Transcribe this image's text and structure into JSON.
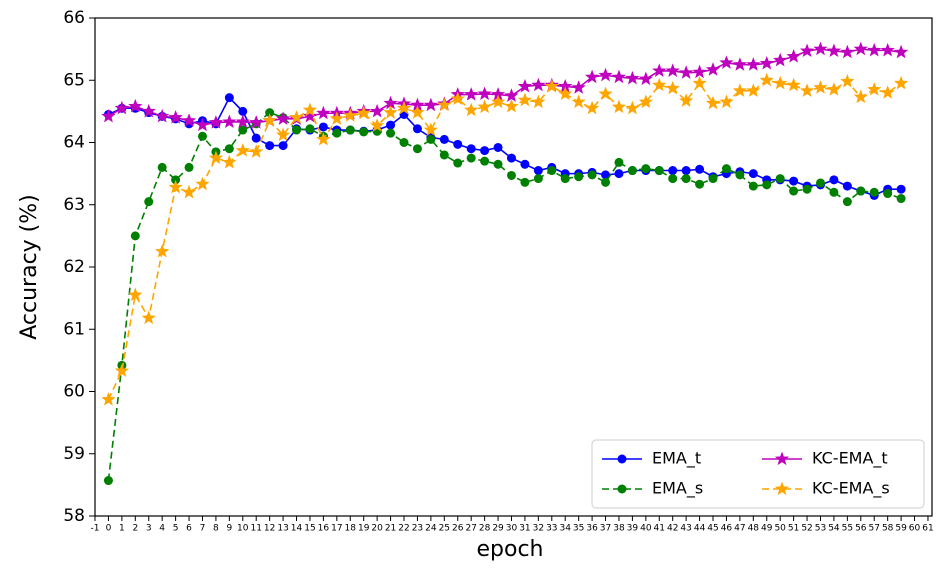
{
  "chart_data": {
    "type": "line",
    "xlabel": "epoch",
    "ylabel": "Accuracy (%)",
    "x": [
      0,
      1,
      2,
      3,
      4,
      5,
      6,
      7,
      8,
      9,
      10,
      11,
      12,
      13,
      14,
      15,
      16,
      17,
      18,
      19,
      20,
      21,
      22,
      23,
      24,
      25,
      26,
      27,
      28,
      29,
      30,
      31,
      32,
      33,
      34,
      35,
      36,
      37,
      38,
      39,
      40,
      41,
      42,
      43,
      44,
      45,
      46,
      47,
      48,
      49,
      50,
      51,
      52,
      53,
      54,
      55,
      56,
      57,
      58,
      59
    ],
    "xlim": [
      -1,
      61.3
    ],
    "ylim": [
      58,
      66
    ],
    "xticks": [
      -1,
      0,
      1,
      2,
      3,
      4,
      5,
      6,
      7,
      8,
      9,
      10,
      11,
      12,
      13,
      14,
      15,
      16,
      17,
      18,
      19,
      20,
      21,
      22,
      23,
      24,
      25,
      26,
      27,
      28,
      29,
      30,
      31,
      32,
      33,
      34,
      35,
      36,
      37,
      38,
      39,
      40,
      41,
      42,
      43,
      44,
      45,
      46,
      47,
      48,
      49,
      50,
      51,
      52,
      53,
      54,
      55,
      56,
      57,
      58,
      59,
      60,
      61
    ],
    "yticks": [
      58,
      59,
      60,
      61,
      62,
      63,
      64,
      65,
      66
    ],
    "grid": false,
    "legend_loc": "lower right",
    "legend_ncol": 2,
    "series": [
      {
        "name": "EMA_t",
        "color": "#0000ff",
        "marker": "circle",
        "linestyle": "solid",
        "values": [
          64.45,
          64.55,
          64.55,
          64.48,
          64.42,
          64.38,
          64.3,
          64.35,
          64.3,
          64.72,
          64.5,
          64.07,
          63.95,
          63.95,
          64.22,
          64.2,
          64.25,
          64.2,
          64.2,
          64.18,
          64.2,
          64.28,
          64.45,
          64.22,
          64.08,
          64.05,
          63.97,
          63.9,
          63.87,
          63.92,
          63.75,
          63.65,
          63.55,
          63.6,
          63.5,
          63.5,
          63.52,
          63.48,
          63.5,
          63.55,
          63.55,
          63.55,
          63.55,
          63.55,
          63.57,
          63.45,
          63.5,
          63.53,
          63.5,
          63.4,
          63.4,
          63.38,
          63.3,
          63.32,
          63.4,
          63.3,
          63.22,
          63.15,
          63.25,
          63.25
        ]
      },
      {
        "name": "EMA_s",
        "color": "#008000",
        "marker": "circle",
        "linestyle": "dashed",
        "values": [
          58.57,
          60.42,
          62.5,
          63.05,
          63.6,
          63.4,
          63.6,
          64.1,
          63.85,
          63.9,
          64.2,
          64.3,
          64.48,
          64.4,
          64.2,
          64.22,
          64.1,
          64.15,
          64.2,
          64.17,
          64.18,
          64.15,
          64.0,
          63.9,
          64.05,
          63.8,
          63.67,
          63.75,
          63.7,
          63.65,
          63.47,
          63.36,
          63.42,
          63.55,
          63.42,
          63.45,
          63.48,
          63.36,
          63.68,
          63.55,
          63.58,
          63.55,
          63.42,
          63.42,
          63.33,
          63.42,
          63.58,
          63.48,
          63.3,
          63.32,
          63.42,
          63.22,
          63.25,
          63.35,
          63.2,
          63.05,
          63.22,
          63.2,
          63.18,
          63.1
        ]
      },
      {
        "name": "KC-EMA_t",
        "color": "#bf00bf",
        "marker": "star",
        "linestyle": "solid",
        "values": [
          64.42,
          64.55,
          64.58,
          64.5,
          64.42,
          64.4,
          64.35,
          64.28,
          64.32,
          64.33,
          64.33,
          64.32,
          64.35,
          64.38,
          64.38,
          64.42,
          64.47,
          64.47,
          64.47,
          64.5,
          64.5,
          64.63,
          64.62,
          64.6,
          64.6,
          64.62,
          64.77,
          64.77,
          64.78,
          64.77,
          64.75,
          64.9,
          64.92,
          64.92,
          64.9,
          64.88,
          65.05,
          65.08,
          65.05,
          65.03,
          65.02,
          65.15,
          65.15,
          65.12,
          65.13,
          65.17,
          65.28,
          65.25,
          65.25,
          65.27,
          65.32,
          65.38,
          65.47,
          65.5,
          65.47,
          65.45,
          65.5,
          65.48,
          65.48,
          65.45
        ]
      },
      {
        "name": "KC-EMA_s",
        "color": "#ffa500",
        "marker": "star",
        "linestyle": "dashed",
        "values": [
          59.87,
          60.33,
          61.55,
          61.18,
          62.25,
          63.28,
          63.2,
          63.33,
          63.75,
          63.68,
          63.87,
          63.85,
          64.35,
          64.12,
          64.4,
          64.52,
          64.05,
          64.38,
          64.43,
          64.47,
          64.27,
          64.48,
          64.55,
          64.48,
          64.2,
          64.6,
          64.7,
          64.52,
          64.57,
          64.65,
          64.58,
          64.68,
          64.65,
          64.9,
          64.78,
          64.65,
          64.55,
          64.78,
          64.57,
          64.55,
          64.65,
          64.92,
          64.87,
          64.67,
          64.95,
          64.63,
          64.65,
          64.83,
          64.83,
          65.0,
          64.95,
          64.92,
          64.83,
          64.88,
          64.85,
          64.98,
          64.73,
          64.85,
          64.8,
          64.95
        ]
      }
    ]
  }
}
